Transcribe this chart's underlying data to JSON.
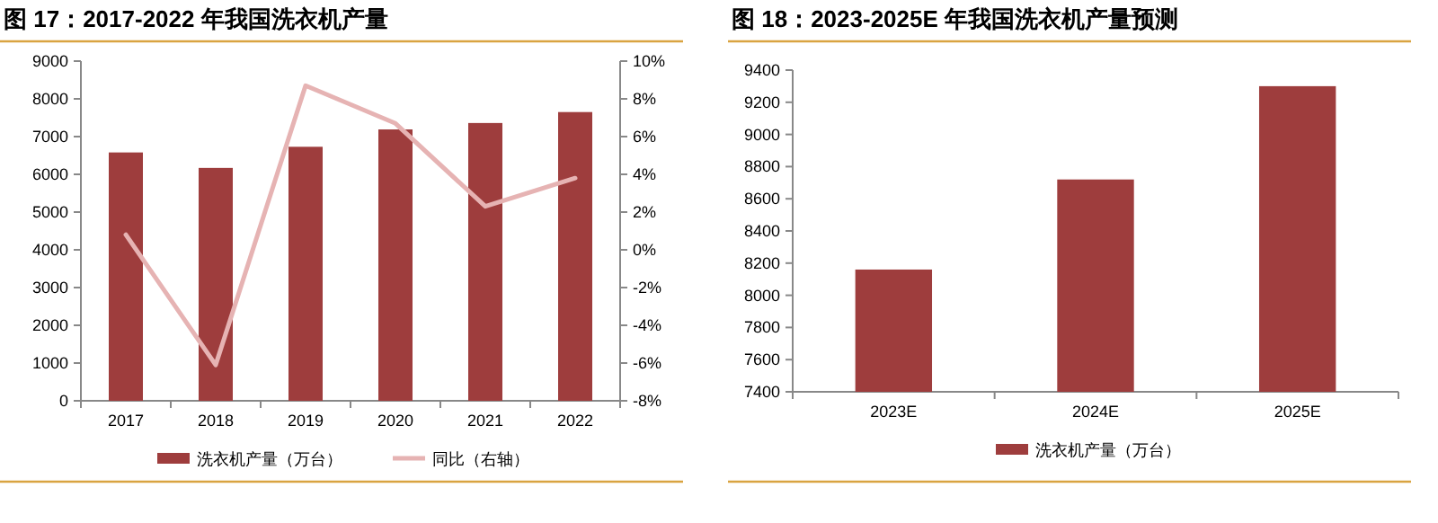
{
  "chart_data": [
    {
      "type": "bar",
      "title": "图 17：2017-2022 年我国洗衣机产量",
      "categories": [
        "2017",
        "2018",
        "2019",
        "2020",
        "2021",
        "2022"
      ],
      "series": [
        {
          "name": "洗衣机产量（万台）",
          "color": "#9e3d3d",
          "values": [
            6580,
            6170,
            6730,
            7190,
            7360,
            7650
          ]
        },
        {
          "name": "同比（右轴）",
          "type": "line",
          "axis": "y2",
          "color": "#e6b3b3",
          "values": [
            0.8,
            -6.1,
            8.7,
            6.7,
            2.3,
            3.8
          ]
        }
      ],
      "ylim": [
        0,
        9000
      ],
      "yticks": [
        0,
        1000,
        2000,
        3000,
        4000,
        5000,
        6000,
        7000,
        8000,
        9000
      ],
      "y2lim": [
        -8,
        10
      ],
      "y2ticks": [
        {
          "value": -8,
          "label": "-8%"
        },
        {
          "value": -6,
          "label": "-6%"
        },
        {
          "value": -4,
          "label": "-4%"
        },
        {
          "value": -2,
          "label": "-2%"
        },
        {
          "value": 0,
          "label": "0%"
        },
        {
          "value": 2,
          "label": "2%"
        },
        {
          "value": 4,
          "label": "4%"
        },
        {
          "value": 6,
          "label": "6%"
        },
        {
          "value": 8,
          "label": "8%"
        },
        {
          "value": 10,
          "label": "10%"
        }
      ],
      "legend": "bottom",
      "grid": false
    },
    {
      "type": "bar",
      "title": "图 18：2023-2025E 年我国洗衣机产量预测",
      "categories": [
        "2023E",
        "2024E",
        "2025E"
      ],
      "series": [
        {
          "name": "洗衣机产量（万台）",
          "color": "#9e3d3d",
          "values": [
            8160,
            8720,
            9300
          ]
        }
      ],
      "ylim": [
        7400,
        9400
      ],
      "yticks": [
        7400,
        7600,
        7800,
        8000,
        8200,
        8400,
        8600,
        8800,
        9000,
        9200,
        9400
      ],
      "legend": "bottom",
      "grid": false
    }
  ]
}
